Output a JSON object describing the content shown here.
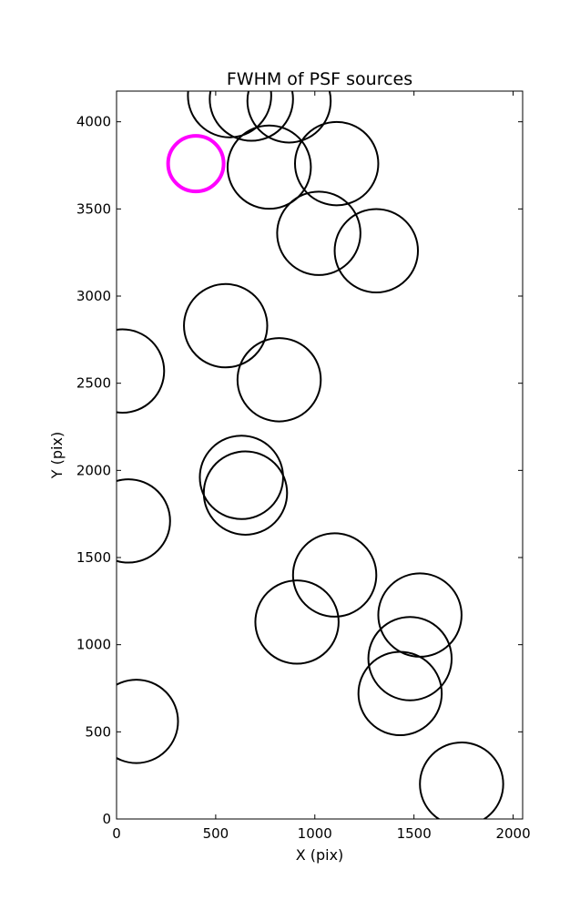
{
  "chart_data": {
    "type": "scatter",
    "title": "FWHM of PSF sources",
    "xlabel": "X (pix)",
    "ylabel": "Y (pix)",
    "xlim": [
      0,
      2048
    ],
    "ylim": [
      0,
      4176
    ],
    "xticks": [
      0,
      500,
      1000,
      1500,
      2000
    ],
    "xtick_labels": [
      "0",
      "500",
      "1000",
      "1500",
      "2000"
    ],
    "yticks": [
      0,
      500,
      1000,
      1500,
      2000,
      2500,
      3000,
      3500,
      4000
    ],
    "ytick_labels": [
      "0",
      "500",
      "1000",
      "1500",
      "2000",
      "2500",
      "3000",
      "3500",
      "4000"
    ],
    "grid": false,
    "marker": "circle",
    "colors": {
      "default": "#000000",
      "highlight": "#ff00ff"
    },
    "points": [
      {
        "x": 400,
        "y": 3760,
        "r": 140,
        "color": "highlight"
      },
      {
        "x": 570,
        "y": 4150,
        "r": 210,
        "color": "default"
      },
      {
        "x": 680,
        "y": 4130,
        "r": 210,
        "color": "default"
      },
      {
        "x": 870,
        "y": 4120,
        "r": 210,
        "color": "default"
      },
      {
        "x": 770,
        "y": 3740,
        "r": 210,
        "color": "default"
      },
      {
        "x": 1110,
        "y": 3760,
        "r": 210,
        "color": "default"
      },
      {
        "x": 1020,
        "y": 3360,
        "r": 210,
        "color": "default"
      },
      {
        "x": 1310,
        "y": 3260,
        "r": 210,
        "color": "default"
      },
      {
        "x": 550,
        "y": 2830,
        "r": 210,
        "color": "default"
      },
      {
        "x": 30,
        "y": 2570,
        "r": 210,
        "color": "default"
      },
      {
        "x": 820,
        "y": 2520,
        "r": 210,
        "color": "default"
      },
      {
        "x": 630,
        "y": 1960,
        "r": 210,
        "color": "default"
      },
      {
        "x": 650,
        "y": 1870,
        "r": 210,
        "color": "default"
      },
      {
        "x": 60,
        "y": 1710,
        "r": 210,
        "color": "default"
      },
      {
        "x": 1100,
        "y": 1400,
        "r": 210,
        "color": "default"
      },
      {
        "x": 910,
        "y": 1130,
        "r": 210,
        "color": "default"
      },
      {
        "x": 1530,
        "y": 1170,
        "r": 210,
        "color": "default"
      },
      {
        "x": 1480,
        "y": 920,
        "r": 210,
        "color": "default"
      },
      {
        "x": 1430,
        "y": 720,
        "r": 210,
        "color": "default"
      },
      {
        "x": 100,
        "y": 560,
        "r": 210,
        "color": "default"
      },
      {
        "x": 1740,
        "y": 200,
        "r": 210,
        "color": "default"
      }
    ]
  }
}
